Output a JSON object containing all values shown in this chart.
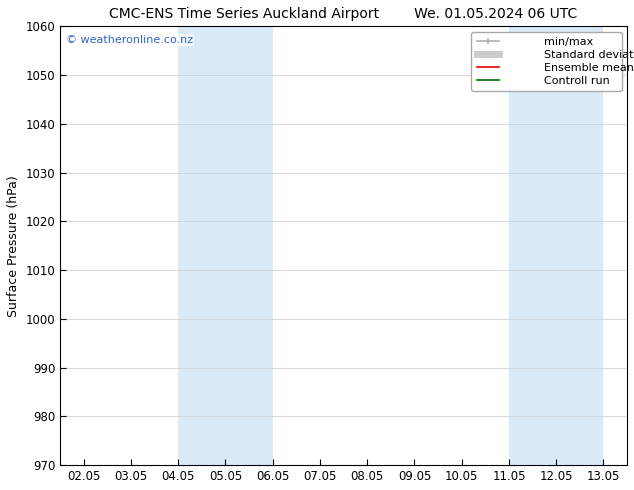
{
  "title_left": "CMC-ENS Time Series Auckland Airport",
  "title_right": "We. 01.05.2024 06 UTC",
  "ylabel": "Surface Pressure (hPa)",
  "ylim": [
    970,
    1060
  ],
  "yticks": [
    970,
    980,
    990,
    1000,
    1010,
    1020,
    1030,
    1040,
    1050,
    1060
  ],
  "xtick_labels": [
    "02.05",
    "03.05",
    "04.05",
    "05.05",
    "06.05",
    "07.05",
    "08.05",
    "09.05",
    "10.05",
    "11.05",
    "12.05",
    "13.05"
  ],
  "xtick_positions": [
    0,
    1,
    2,
    3,
    4,
    5,
    6,
    7,
    8,
    9,
    10,
    11
  ],
  "xlim": [
    -0.5,
    11.5
  ],
  "shaded_bands": [
    {
      "x_start": 2,
      "x_end": 4,
      "color": "#daeaf7"
    },
    {
      "x_start": 9,
      "x_end": 11,
      "color": "#daeaf7"
    }
  ],
  "watermark_text": "© weatheronline.co.nz",
  "watermark_color": "#3366bb",
  "legend_entries": [
    {
      "label": "min/max",
      "color": "#b0b0b0",
      "lw": 1.2,
      "ls": "-",
      "marker": true
    },
    {
      "label": "Standard deviation",
      "color": "#cccccc",
      "lw": 5,
      "ls": "-",
      "marker": false
    },
    {
      "label": "Ensemble mean run",
      "color": "#dd0000",
      "lw": 1.2,
      "ls": "-",
      "marker": false
    },
    {
      "label": "Controll run",
      "color": "#006600",
      "lw": 1.2,
      "ls": "-",
      "marker": false
    }
  ],
  "title_fontsize": 10,
  "tick_label_fontsize": 8.5,
  "ylabel_fontsize": 9,
  "legend_fontsize": 8,
  "watermark_fontsize": 8,
  "background_color": "#ffffff",
  "grid_color": "#cccccc",
  "grid_lw": 0.5
}
